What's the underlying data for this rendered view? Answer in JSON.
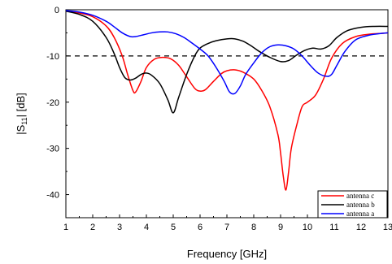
{
  "chart_data": {
    "type": "line",
    "title": "",
    "xlabel": "Frequency [GHz]",
    "ylabel_main": "|S",
    "ylabel_sub": "11",
    "ylabel_tail": "| [dB]",
    "xlim": [
      1,
      13
    ],
    "ylim": [
      -45,
      0
    ],
    "xticks": [
      1,
      2,
      3,
      4,
      5,
      6,
      7,
      8,
      9,
      10,
      11,
      12,
      13
    ],
    "yticks": [
      0,
      -10,
      -20,
      -30,
      -40
    ],
    "xtick_labels": [
      "1",
      "2",
      "3",
      "4",
      "5",
      "6",
      "7",
      "8",
      "9",
      "10",
      "11",
      "12",
      "13"
    ],
    "ytick_labels": [
      "0",
      "-10",
      "-20",
      "-30",
      "-40"
    ],
    "grid": false,
    "legend_position": "bottom-right",
    "reference_line": {
      "y": -10,
      "style": "dashed",
      "color": "#000000"
    },
    "series": [
      {
        "name": "antenna c",
        "color": "#ff0000",
        "x": [
          1,
          1.5,
          2,
          2.5,
          2.8,
          3.1,
          3.3,
          3.5,
          3.6,
          3.8,
          4.0,
          4.3,
          4.6,
          4.9,
          5.2,
          5.5,
          5.8,
          6.0,
          6.2,
          6.5,
          6.8,
          7.0,
          7.3,
          7.6,
          8.0,
          8.3,
          8.6,
          8.9,
          9.0,
          9.1,
          9.2,
          9.3,
          9.4,
          9.6,
          9.8,
          10.0,
          10.3,
          10.6,
          10.9,
          11.3,
          11.8,
          12.3,
          12.8,
          13
        ],
        "y": [
          -0.3,
          -0.7,
          -1.5,
          -3.5,
          -6,
          -10,
          -14,
          -17.5,
          -17.8,
          -15.5,
          -12.5,
          -10.7,
          -10.3,
          -10.6,
          -12,
          -14.5,
          -17,
          -17.6,
          -17.3,
          -15.5,
          -13.8,
          -13.2,
          -13,
          -13.5,
          -15,
          -17.5,
          -21,
          -27,
          -31,
          -36,
          -39,
          -35,
          -30,
          -25,
          -21,
          -20,
          -18.5,
          -15,
          -10.5,
          -7.3,
          -5.8,
          -5.3,
          -5.1,
          -5.0
        ]
      },
      {
        "name": "antenna b",
        "color": "#000000",
        "x": [
          1,
          1.5,
          2,
          2.5,
          2.8,
          3.0,
          3.2,
          3.4,
          3.6,
          3.8,
          4.0,
          4.2,
          4.5,
          4.8,
          5.0,
          5.2,
          5.5,
          5.8,
          6.0,
          6.3,
          6.6,
          7.0,
          7.3,
          7.6,
          7.9,
          8.2,
          8.6,
          9.0,
          9.3,
          9.6,
          9.9,
          10.2,
          10.5,
          10.8,
          11.1,
          11.5,
          12.0,
          12.5,
          13
        ],
        "y": [
          -0.3,
          -1,
          -2.5,
          -6,
          -9.5,
          -12.5,
          -14.7,
          -15.2,
          -14.8,
          -14,
          -13.7,
          -14.2,
          -16,
          -19.5,
          -22.3,
          -19,
          -14,
          -10,
          -8.3,
          -7.3,
          -6.7,
          -6.3,
          -6.3,
          -6.8,
          -7.8,
          -9,
          -10.3,
          -11.2,
          -11,
          -9.8,
          -8.8,
          -8.3,
          -8.5,
          -7.8,
          -6,
          -4.5,
          -3.8,
          -3.6,
          -3.6
        ]
      },
      {
        "name": "antenna a",
        "color": "#0000ff",
        "x": [
          1,
          1.5,
          2,
          2.5,
          2.8,
          3.1,
          3.4,
          3.6,
          3.9,
          4.2,
          4.5,
          4.8,
          5.1,
          5.4,
          5.7,
          6.0,
          6.3,
          6.6,
          6.9,
          7.1,
          7.3,
          7.5,
          7.7,
          8.0,
          8.3,
          8.6,
          8.9,
          9.2,
          9.5,
          9.8,
          10.1,
          10.4,
          10.7,
          10.9,
          11.1,
          11.4,
          11.8,
          12.3,
          12.8,
          13
        ],
        "y": [
          -0.2,
          -0.5,
          -1.2,
          -2.5,
          -3.7,
          -5,
          -5.8,
          -5.8,
          -5.4,
          -5,
          -4.8,
          -4.8,
          -5.2,
          -6,
          -7.2,
          -8.5,
          -10,
          -12.5,
          -15.5,
          -17.8,
          -18.1,
          -16.5,
          -14,
          -11.5,
          -9.3,
          -8,
          -7.6,
          -7.8,
          -8.5,
          -10,
          -12,
          -13.7,
          -14.4,
          -14,
          -12,
          -9,
          -6.5,
          -5.5,
          -5.1,
          -5.0
        ]
      }
    ]
  }
}
